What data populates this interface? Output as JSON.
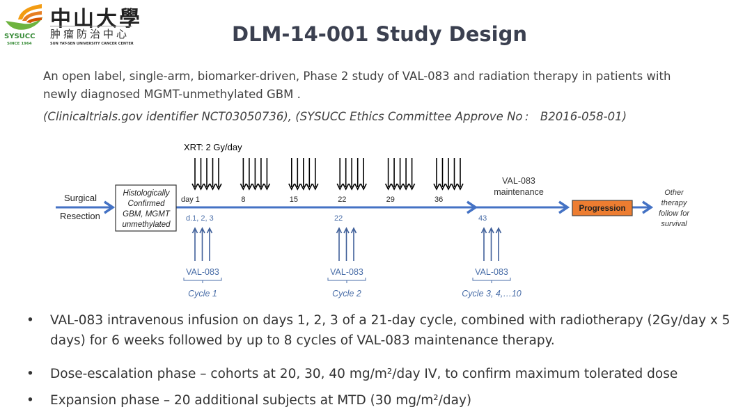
{
  "logo": {
    "name_cn": "中山大學",
    "center_cn": "肿瘤防治中心",
    "center_en": "SUN YAT-SEN UNIVERSITY CANCER CENTER",
    "abbr": "SYSUCC",
    "since": "SINCE 1964"
  },
  "title": "DLM-14-001 Study Design",
  "subtitle_line1": "An open label, single-arm, biomarker-driven, Phase 2 study of VAL-083 and radiation therapy in patients with",
  "subtitle_line2": "newly diagnosed MGMT-unmethylated GBM .",
  "identifier": "(Clinicaltrials.gov identifier NCT03050736), (SYSUCC Ethics Committee Approve No : B2016-058-01)",
  "diagram": {
    "xrt_label": "XRT: 2 Gy/day",
    "surgical": "Surgical",
    "resection": "Resection",
    "box_lines": [
      "Histologically",
      "Confirmed",
      "GBM, MGMT",
      "unmethylated"
    ],
    "day_labels": [
      "day 1",
      "8",
      "15",
      "22",
      "29",
      "36"
    ],
    "xrt_days": [
      1,
      8,
      15,
      22,
      29,
      36
    ],
    "xrt_doses_per_week": 5,
    "maintenance_line1": "VAL-083",
    "maintenance_line2": "maintenance",
    "progression": "Progression",
    "other_lines": [
      "Other",
      "therapy",
      "follow for",
      "survival"
    ],
    "drug_groups": [
      {
        "day_label": "d.1, 2, 3",
        "drug": "VAL-083",
        "cycle": "Cycle 1"
      },
      {
        "day_label": "22",
        "drug": "VAL-083",
        "cycle": "Cycle 2"
      },
      {
        "day_label": "43",
        "drug": "VAL-083",
        "cycle": "Cycle 3, 4,…10"
      }
    ],
    "colors": {
      "timeline": "#4472c4",
      "drug": "#3f5f99",
      "drug_text": "#4a6ea8",
      "progression": "#ed7d31",
      "xrt": "#000000"
    }
  },
  "bullets": [
    {
      "lines": [
        "VAL-083 intravenous infusion on days 1, 2, 3 of a 21-day cycle, combined with radiotherapy (2Gy/day x 5",
        "days) for 6 weeks followed by up to 8 cycles of VAL-083 maintenance therapy."
      ]
    },
    {
      "lines": [
        "Dose-escalation phase – cohorts at 20, 30, 40 mg/m²/day IV, to confirm maximum tolerated dose"
      ]
    },
    {
      "lines": [
        "Expansion phase – 20 additional subjects at MTD (30 mg/m²/day)"
      ]
    }
  ]
}
